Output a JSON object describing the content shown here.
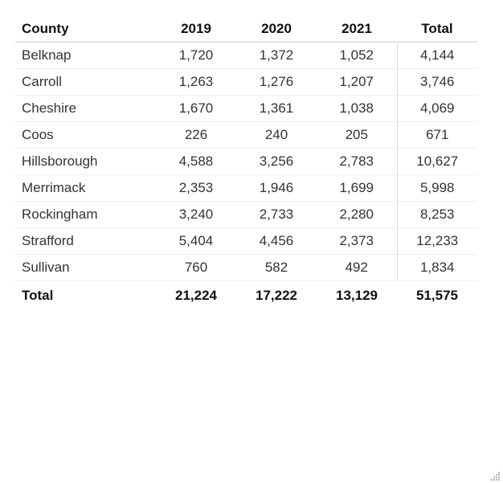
{
  "chart_data": {
    "type": "table",
    "columns": [
      "County",
      "2019",
      "2020",
      "2021",
      "Total"
    ],
    "rows": [
      {
        "county": "Belknap",
        "y2019": "1,720",
        "y2020": "1,372",
        "y2021": "1,052",
        "total": "4,144"
      },
      {
        "county": "Carroll",
        "y2019": "1,263",
        "y2020": "1,276",
        "y2021": "1,207",
        "total": "3,746"
      },
      {
        "county": "Cheshire",
        "y2019": "1,670",
        "y2020": "1,361",
        "y2021": "1,038",
        "total": "4,069"
      },
      {
        "county": "Coos",
        "y2019": "226",
        "y2020": "240",
        "y2021": "205",
        "total": "671"
      },
      {
        "county": "Hillsborough",
        "y2019": "4,588",
        "y2020": "3,256",
        "y2021": "2,783",
        "total": "10,627"
      },
      {
        "county": "Merrimack",
        "y2019": "2,353",
        "y2020": "1,946",
        "y2021": "1,699",
        "total": "5,998"
      },
      {
        "county": "Rockingham",
        "y2019": "3,240",
        "y2020": "2,733",
        "y2021": "2,280",
        "total": "8,253"
      },
      {
        "county": "Strafford",
        "y2019": "5,404",
        "y2020": "4,456",
        "y2021": "2,373",
        "total": "12,233"
      },
      {
        "county": "Sullivan",
        "y2019": "760",
        "y2020": "582",
        "y2021": "492",
        "total": "1,834"
      }
    ],
    "totals": {
      "label": "Total",
      "y2019": "21,224",
      "y2020": "17,222",
      "y2021": "13,129",
      "total": "51,575"
    }
  },
  "icons": {
    "resize_grip": "resize-grip-icon"
  }
}
